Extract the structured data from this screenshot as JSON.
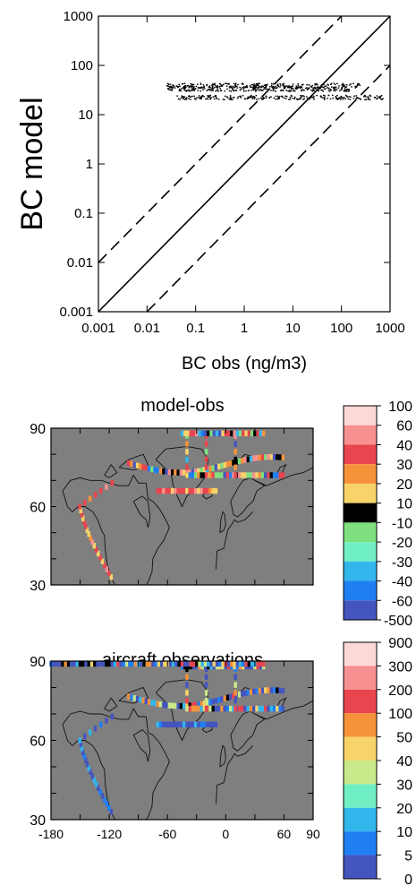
{
  "chart_data": [
    {
      "type": "scatter",
      "xlabel": "BC obs (ng/m3)",
      "ylabel": "BC model",
      "xscale": "log",
      "yscale": "log",
      "xlim": [
        0.001,
        1000
      ],
      "ylim": [
        0.001,
        1000
      ],
      "x_ticks": [
        "0.001",
        "0.01",
        "0.1",
        "1",
        "10",
        "100",
        "1000"
      ],
      "y_ticks": [
        "0.001",
        "0.01",
        "0.1",
        "1",
        "10",
        "100",
        "1000"
      ],
      "reference_lines": [
        {
          "style": "solid",
          "relation": "1:1"
        },
        {
          "style": "dashed",
          "relation": "10:1"
        },
        {
          "style": "dashed",
          "relation": "1:10"
        }
      ],
      "clusters": [
        {
          "x_range": [
            0.025,
            300
          ],
          "y_center": 40
        },
        {
          "x_range": [
            0.025,
            150
          ],
          "y_center": 34
        },
        {
          "x_range": [
            0.04,
            700
          ],
          "y_center": 23
        }
      ],
      "point_color": "#000000"
    },
    {
      "type": "heatmap",
      "title": "model-obs",
      "x_ticks": [],
      "y_ticks": [
        "30",
        "60",
        "90"
      ],
      "colorbar_labels": [
        "100",
        "60",
        "40",
        "30",
        "20",
        "10",
        "-10",
        "-20",
        "-30",
        "-40",
        "-60",
        "-500"
      ],
      "colorbar_colors": [
        "#fdd8d8",
        "#f79090",
        "#e9454e",
        "#f6923a",
        "#f7d36a",
        "#000000",
        "#7ee07e",
        "#6fefc3",
        "#33b6ec",
        "#1f7ef2",
        "#4455c0"
      ],
      "background_color": "#7f7f7f"
    },
    {
      "type": "heatmap",
      "title": "aircraft observations",
      "x_ticks": [
        "-180",
        "-120",
        "-60",
        "0",
        "60",
        "90"
      ],
      "y_ticks": [
        "30",
        "60",
        "90"
      ],
      "colorbar_labels": [
        "900",
        "300",
        "200",
        "100",
        "50",
        "40",
        "30",
        "20",
        "10",
        "5",
        "0"
      ],
      "colorbar_colors": [
        "#fdd8d8",
        "#f79090",
        "#e9454e",
        "#f6923a",
        "#f7d36a",
        "#c9e98a",
        "#6fefc3",
        "#33b6ec",
        "#1f7ef2",
        "#4455c0"
      ],
      "background_color": "#7f7f7f"
    }
  ]
}
